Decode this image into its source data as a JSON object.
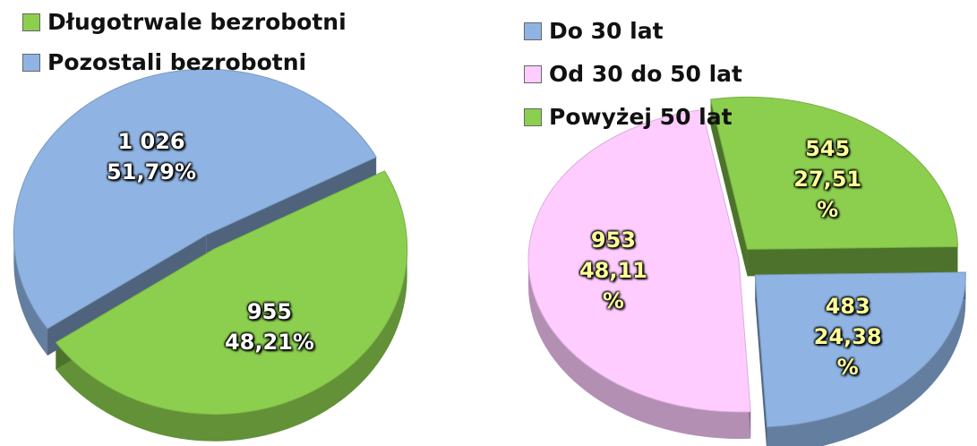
{
  "chart_data": [
    {
      "type": "pie",
      "categories": [
        "Długotrwale bezrobotni",
        "Pozostali bezrobotni"
      ],
      "values": [
        955,
        1026
      ],
      "value_labels": [
        "955",
        "1 026"
      ],
      "percents": [
        48.21,
        51.79
      ],
      "percent_labels": [
        "48,21%",
        "51,79%"
      ],
      "colors": [
        "#8ccf4f",
        "#8fb4e3"
      ]
    },
    {
      "type": "pie",
      "categories": [
        "Do 30 lat",
        "Od 30 do 50 lat",
        "Powyżej 50 lat"
      ],
      "values": [
        483,
        953,
        545
      ],
      "value_labels": [
        "483",
        "953",
        "545"
      ],
      "percents": [
        24.38,
        48.11,
        27.51
      ],
      "percent_labels": [
        "24,38 %",
        "48,11 %",
        "27,51 %"
      ],
      "colors": [
        "#8fb4e3",
        "#ffccff",
        "#8ccf4f"
      ]
    }
  ]
}
